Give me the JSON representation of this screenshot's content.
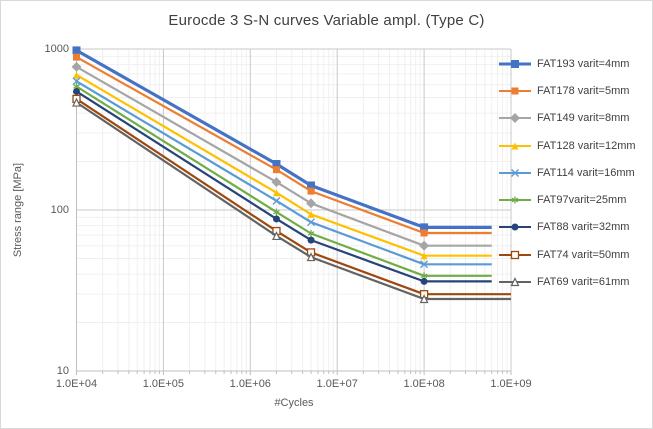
{
  "chart": {
    "title": "Eurocde 3 S-N curves Variable ampl. (Type C)",
    "x_axis": {
      "label": "#Cycles",
      "tick_labels": [
        "1.0E+04",
        "1.0E+05",
        "1.0E+06",
        "1.0E+07",
        "1.0E+08",
        "1.0E+09"
      ]
    },
    "y_axis": {
      "label": "Stress range [MPa]",
      "tick_labels": [
        "1000",
        "100",
        "10"
      ]
    }
  },
  "chart_data": {
    "type": "line",
    "title": "Eurocde 3 S-N curves Variable ampl. (Type C)",
    "xlabel": "#Cycles",
    "ylabel": "Stress range [MPa]",
    "x_scale": "log",
    "y_scale": "log",
    "xlim": [
      10000,
      1000000000
    ],
    "ylim": [
      10,
      1000
    ],
    "grid": "major and minor log gridlines",
    "legend_position": "right",
    "series": [
      {
        "name": "FAT193 varit=4mm",
        "color": "#4472C4",
        "marker": "square",
        "line_width": 3.2,
        "points": [
          [
            10000,
            980
          ],
          [
            2000000,
            193
          ],
          [
            5000000,
            142
          ],
          [
            100000000,
            78
          ],
          [
            600000000,
            78
          ]
        ]
      },
      {
        "name": "FAT178 varit=5mm",
        "color": "#ED7D31",
        "marker": "square",
        "line_width": 2.2,
        "points": [
          [
            10000,
            890
          ],
          [
            2000000,
            178
          ],
          [
            5000000,
            131
          ],
          [
            100000000,
            72
          ],
          [
            600000000,
            72
          ]
        ]
      },
      {
        "name": "FAT149 varit=8mm",
        "color": "#A5A5A5",
        "marker": "diamond",
        "line_width": 2.2,
        "points": [
          [
            10000,
            775
          ],
          [
            2000000,
            149
          ],
          [
            5000000,
            110
          ],
          [
            100000000,
            60
          ],
          [
            600000000,
            60
          ]
        ]
      },
      {
        "name": "FAT128 varit=12mm",
        "color": "#FFC000",
        "marker": "triangle",
        "line_width": 2.2,
        "points": [
          [
            10000,
            690
          ],
          [
            2000000,
            128
          ],
          [
            5000000,
            94
          ],
          [
            100000000,
            52
          ],
          [
            600000000,
            52
          ]
        ]
      },
      {
        "name": "FAT114 varit=16mm",
        "color": "#5B9BD5",
        "marker": "x",
        "line_width": 2.2,
        "points": [
          [
            10000,
            630
          ],
          [
            2000000,
            114
          ],
          [
            5000000,
            84
          ],
          [
            100000000,
            46
          ],
          [
            600000000,
            46
          ]
        ]
      },
      {
        "name": "FAT97varit=25mm",
        "color": "#70AD47",
        "marker": "star6",
        "line_width": 2.2,
        "points": [
          [
            10000,
            585
          ],
          [
            2000000,
            97
          ],
          [
            5000000,
            71.5
          ],
          [
            100000000,
            39
          ],
          [
            600000000,
            39
          ]
        ]
      },
      {
        "name": "FAT88 varit=32mm",
        "color": "#264478",
        "marker": "circle",
        "line_width": 2.2,
        "points": [
          [
            10000,
            545
          ],
          [
            2000000,
            88
          ],
          [
            5000000,
            65
          ],
          [
            100000000,
            36
          ],
          [
            600000000,
            36
          ]
        ]
      },
      {
        "name": "FAT74 varit=50mm",
        "color": "#9E480E",
        "marker": "square-open",
        "line_width": 2.2,
        "points": [
          [
            10000,
            490
          ],
          [
            2000000,
            74
          ],
          [
            5000000,
            54.5
          ],
          [
            100000000,
            30
          ],
          [
            1000000000,
            30
          ]
        ]
      },
      {
        "name": "FAT69 varit=61mm",
        "color": "#636363",
        "marker": "triangle-open",
        "line_width": 2.2,
        "points": [
          [
            10000,
            465
          ],
          [
            2000000,
            69
          ],
          [
            5000000,
            51
          ],
          [
            100000000,
            28
          ],
          [
            1000000000,
            28
          ]
        ]
      }
    ]
  },
  "colors": {
    "title_text": "#404040",
    "axis_text": "#595959",
    "legend_text": "#404040",
    "major_grid": "#C9C9C9",
    "minor_grid": "#F0F0F0",
    "axis_line": "#BFBFBF",
    "background": "#FFFFFF",
    "chart_border": "#D9D9D9"
  }
}
